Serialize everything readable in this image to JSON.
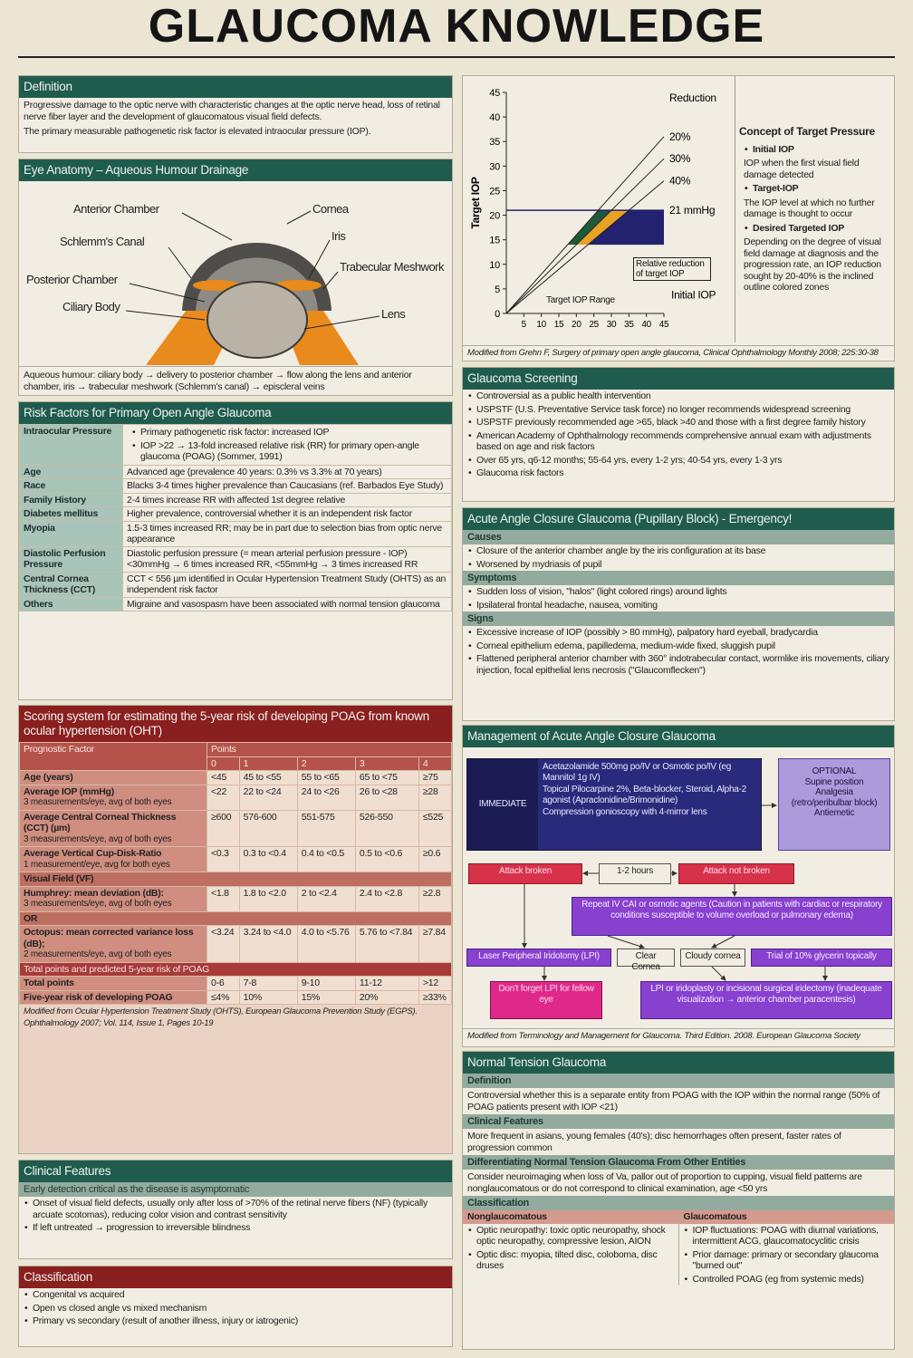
{
  "title": "GLAUCOMA KNOWLEDGE",
  "definition": {
    "heading": "Definition",
    "text": [
      "Progressive damage to the optic nerve with characteristic changes at the optic nerve head, loss of retinal nerve fiber layer and the development of glaucomatous visual field defects.",
      "The primary measurable pathogenetic risk factor is elevated intraocular pressure (IOP)."
    ]
  },
  "anatomy": {
    "heading": "Eye Anatomy – Aqueous Humour Drainage",
    "labels": [
      "Anterior Chamber",
      "Cornea",
      "Schlemm's Canal",
      "Iris",
      "Trabecular Meshwork",
      "Posterior Chamber",
      "Ciliary Body",
      "Lens"
    ],
    "caption": "Aqueous humour: ciliary body → delivery to posterior chamber → flow along the lens and anterior chamber, iris → trabecular meshwork (Schlemm's canal) → episcleral veins"
  },
  "risk_factors": {
    "heading": "Risk Factors for Primary Open Angle Glaucoma",
    "rows": [
      {
        "factor": "Intraocular Pressure",
        "bullets": [
          "Primary pathogenetic risk factor: increased IOP",
          "IOP >22 → 13-fold increased relative risk (RR) for primary open-angle glaucoma (POAG) (Sommer, 1991)"
        ]
      },
      {
        "factor": "Age",
        "text": "Advanced age (prevalence 40 years: 0.3% vs 3.3% at 70 years)"
      },
      {
        "factor": "Race",
        "text": "Blacks 3-4 times higher prevalence than Caucasians (ref. Barbados Eye Study)"
      },
      {
        "factor": "Family History",
        "text": "2-4 times increase RR with affected 1st degree relative"
      },
      {
        "factor": "Diabetes mellitus",
        "text": "Higher prevalence, controversial whether it is an independent risk factor"
      },
      {
        "factor": "Myopia",
        "text": "1.5-3 times increased RR; may be in part due to selection bias from optic nerve appearance"
      },
      {
        "factor": "Diastolic Perfusion Pressure",
        "text": "Diastolic perfusion pressure (= mean arterial perfusion pressure - IOP) <30mmHg → 6 times increased RR, <55mmHg → 3 times increased RR"
      },
      {
        "factor": "Central Cornea Thickness (CCT)",
        "text": "CCT < 556 µm identified in Ocular Hypertension Treatment Study (OHTS) as an independent risk factor"
      },
      {
        "factor": "Others",
        "text": "Migraine and vasospasm have been associated with normal tension glaucoma"
      }
    ]
  },
  "scoring": {
    "heading": "Scoring system for estimating the 5-year risk of developing POAG from known ocular hypertension (OHT)",
    "header": {
      "factor": "Prognostic Factor",
      "points": "Points",
      "columns": [
        0,
        1,
        2,
        3,
        4
      ]
    },
    "rows": [
      {
        "factor": "Age (years)",
        "cells": [
          "<45",
          "45 to <55",
          "55 to <65",
          "65 to <75",
          "≥75"
        ]
      },
      {
        "factor": "Average IOP (mmHg)",
        "note": "3 measurements/eye, avg of both eyes",
        "cells": [
          "<22",
          "22 to <24",
          "24 to <26",
          "26 to <28",
          "≥28"
        ]
      },
      {
        "factor": "Average Central Corneal Thickness (CCT) (µm)",
        "note": "3 measurements/eye, avg of both eyes",
        "cells": [
          "≥600",
          "576-600",
          "551-575",
          "526-550",
          "≤525"
        ]
      },
      {
        "factor": "Average Vertical Cup-Disk-Ratio",
        "note": "1 measurement/eye, avg for both eyes",
        "cells": [
          "<0.3",
          "0.3 to <0.4",
          "0.4 to <0.5",
          "0.5 to <0.6",
          "≥0.6"
        ]
      },
      {
        "section": "Visual Field (VF)"
      },
      {
        "factor": "Humphrey: mean deviation (dB):",
        "note": "3 measurements/eye, avg of both eyes",
        "cells": [
          "<1.8",
          "1.8 to <2.0",
          "2 to <2.4",
          "2.4 to <2.8",
          "≥2.8"
        ]
      },
      {
        "section": "OR"
      },
      {
        "factor": "Octopus: mean corrected variance loss (dB);",
        "note": "2 measurements/eye, avg of both eyes",
        "cells": [
          "<3.24",
          "3.24 to <4.0",
          "4.0 to <5.76",
          "5.76 to <7.84",
          "≥7.84"
        ]
      }
    ],
    "totals_heading": "Total points and predicted 5-year risk of POAG",
    "totals": [
      {
        "factor": "Total points",
        "cells": [
          "0-6",
          "7-8",
          "9-10",
          "11-12",
          ">12"
        ]
      },
      {
        "factor": "Five-year risk of developing POAG",
        "cells": [
          "≤4%",
          "10%",
          "15%",
          "20%",
          "≥33%"
        ]
      }
    ],
    "source": "Modified from Ocular Hypertension Treatment Study (OHTS), European Glaucoma Prevention Study (EGPS). Ophthalmology 2007; Vol. 114, Issue 1, Pages 10-19"
  },
  "clinical_features": {
    "heading": "Clinical Features",
    "subheading": "Early detection critical as the disease is asymptomatic",
    "bullets": [
      "Onset of visual field defects, usually only after loss of >70% of the retinal nerve fibers (NF) (typically arcuate scotomas), reducing color vision and contrast sensitivity",
      "If left untreated → progression to irreversible blindness"
    ]
  },
  "classification": {
    "heading": "Classification",
    "bullets": [
      "Congenital vs acquired",
      "Open vs closed angle vs mixed mechanism",
      "Primary vs secondary (result of another illness, injury or iatrogenic)"
    ]
  },
  "chart_data": {
    "type": "line",
    "y_label": "Target IOP",
    "x_label": "Initial IOP",
    "xlim": [
      0,
      45
    ],
    "ylim": [
      0,
      45
    ],
    "xticks": [
      5,
      10,
      15,
      20,
      25,
      30,
      35,
      40,
      45
    ],
    "yticks": [
      0,
      5,
      10,
      15,
      20,
      25,
      30,
      35,
      40,
      45
    ],
    "reduction_label": "Reduction",
    "reductions": [
      {
        "value": 20,
        "label": "20%"
      },
      {
        "value": 30,
        "label": "30%"
      },
      {
        "value": 40,
        "label": "40%"
      }
    ],
    "threshold": {
      "value": 21,
      "label": "21 mmHg"
    },
    "region_colors": [
      "#1d5a3c",
      "#e8a224",
      "#22226e"
    ],
    "annotations": [
      "Relative reduction of target IOP",
      "Target IOP Range"
    ],
    "source": "Modified from Grehn F, Surgery of primary open angle glaucoma, Clinical Ophthalmology Monthly 2008; 225:30-38"
  },
  "target_pressure": {
    "heading": "Concept of Target Pressure",
    "items": [
      {
        "term": "Initial IOP",
        "text": "IOP when the first visual field damage detected"
      },
      {
        "term": "Target-IOP",
        "text": "The IOP level at which no further damage is thought to occur"
      },
      {
        "term": "Desired Targeted IOP",
        "text": "Depending on the degree of visual field damage at diagnosis and the progression rate, an IOP reduction sought by 20-40% is the inclined outline colored zones"
      }
    ]
  },
  "screening": {
    "heading": "Glaucoma Screening",
    "bullets": [
      "Controversial as a public health intervention",
      "USPSTF (U.S. Preventative Service task force) no longer recommends widespread screening",
      "USPSTF previously recommended age >65, black >40 and those with a first degree family history",
      "American Academy of Ophthalmology recommends comprehensive annual exam with adjustments based on age and risk factors",
      "Over 65 yrs, q6-12 months; 55-64 yrs, every 1-2 yrs; 40-54 yrs, every 1-3 yrs",
      "Glaucoma risk factors"
    ]
  },
  "acute": {
    "heading": "Acute Angle Closure Glaucoma (Pupillary Block) - Emergency!",
    "groups": [
      {
        "heading": "Causes",
        "bullets": [
          "Closure of the anterior chamber angle by the iris configuration at its base",
          "Worsened by mydriasis of pupil"
        ]
      },
      {
        "heading": "Symptoms",
        "bullets": [
          "Sudden loss of vision, \"halos\" (light colored rings) around lights",
          "Ipsilateral frontal headache, nausea, vomiting"
        ]
      },
      {
        "heading": "Signs",
        "bullets": [
          "Excessive increase of IOP (possibly > 80 mmHg), palpatory hard eyeball, bradycardia",
          "Corneal epithelium edema, papilledema, medium-wide fixed, sluggish pupil",
          "Flattened peripheral anterior chamber with 360° indotrabecular contact, wormlike iris movements, ciliary injection, focal epithelial lens necrosis (\"Glaucomflecken\")"
        ]
      }
    ]
  },
  "management": {
    "heading": "Management of Acute Angle Closure Glaucoma",
    "immediate": {
      "label": "IMMEDIATE",
      "items": [
        "Acetazolamide 500mg po/IV or Osmotic po/IV (eg Mannitol 1g IV)",
        "Topical Pilocarpine 2%, Beta-blocker, Steroid, Alpha-2 agonist (Apraclonidine/Brimonidine)",
        "Compression gonioscopy with 4-mirror lens"
      ]
    },
    "optional": {
      "title": "OPTIONAL",
      "items": [
        "Supine position",
        "Analgesia",
        "(retro/peribulbar block)",
        "Antiemetic"
      ]
    },
    "attack_broken": "Attack broken",
    "interval": "1-2 hours",
    "attack_not_broken": "Attack not broken",
    "repeat": "Repeat IV CAI or osmotic agents (Caution in patients with cardiac or respiratory conditions susceptible to volume overload or pulmonary edema)",
    "lpi": "Laser Peripheral Iridotomy (LPI)",
    "clear_cornea": "Clear Cornea",
    "cloudy_cornea": "Cloudy cornea",
    "glycerin": "Trial of 10% glycerin topically",
    "fellow_eye": "Don't forget LPI for fellow eye",
    "surgery": "LPI or iridoplasty or incisional surgical iridectomy (inadequate visualization → anterior chamber paracentesis)",
    "source": "Modified from Terminology and Management for Glaucoma. Third Edition. 2008. European Glaucoma Society"
  },
  "ntg": {
    "heading": "Normal Tension Glaucoma",
    "groups": [
      {
        "heading": "Definition",
        "text": "Controversial whether this is a separate entity from POAG with the IOP within the normal range (50% of POAG patients present with IOP <21)"
      },
      {
        "heading": "Clinical Features",
        "text": "More frequent in asians, young females (40's); disc hemorrhages often present, faster rates of progression common"
      },
      {
        "heading": "Differentiating Normal Tension Glaucoma From Other Entities",
        "text": "Consider neuroimaging when loss of Va, pallor out of proportion to cupping, visual field patterns are nonglaucomatous or do not correspond to clinical examination, age <50 yrs"
      }
    ],
    "classification": {
      "heading": "Classification",
      "columns": [
        {
          "heading": "Nonglaucomatous",
          "bullets": [
            "Optic neuropathy: toxic optic neuropathy, shock optic neuropathy, compressive lesion, AION",
            "Optic disc: myopia, tilted disc, coloboma, disc druses"
          ]
        },
        {
          "heading": "Glaucomatous",
          "bullets": [
            "IOP fluctuations: POAG with diurnal variations, intermittent ACG, glaucomatocyclitic crisis",
            "Prior damage: primary or secondary glaucoma \"burned out\"",
            "Controlled POAG (eg from systemic meds)"
          ]
        }
      ]
    }
  }
}
